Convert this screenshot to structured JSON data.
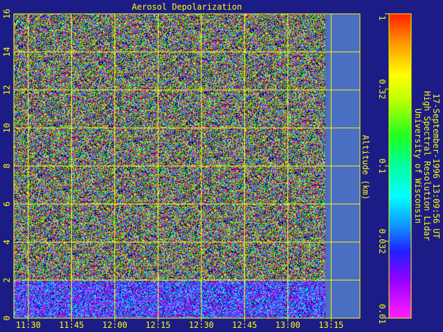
{
  "chart_data": {
    "type": "heatmap",
    "title": "Aerosol Depolarization",
    "ylabel": "Altitude (km)",
    "xlabel": "",
    "y_ticks": [
      0,
      2,
      4,
      6,
      8,
      10,
      12,
      14,
      16
    ],
    "ylim": [
      0,
      16
    ],
    "x_ticks": [
      "11:30",
      "11:45",
      "12:00",
      "12:15",
      "12:30",
      "12:45",
      "13:00",
      "13:15"
    ],
    "x_tick_minutes": [
      690,
      705,
      720,
      735,
      750,
      765,
      780,
      795
    ],
    "xlim_minutes": [
      685,
      805
    ],
    "data_end_minutes": 793,
    "colorbar": {
      "scale": "log",
      "range": [
        0.01,
        1
      ],
      "ticks": [
        {
          "label": "1",
          "value": 1
        },
        {
          "label": "0.32",
          "value": 0.32
        },
        {
          "label": "0.1",
          "value": 0.1
        },
        {
          "label": "0.032",
          "value": 0.032
        },
        {
          "label": "0.01",
          "value": 0.01
        }
      ]
    },
    "grid": true,
    "background_color": "#1c1c86",
    "axis_color": "#ffff00",
    "no_data_color": "#4a6ec2"
  },
  "caption": {
    "line1": "University of Wisconsin",
    "line2": "High Spectral Resolution Lidar",
    "line3": "17-September-1996 13:09:56 UT"
  }
}
